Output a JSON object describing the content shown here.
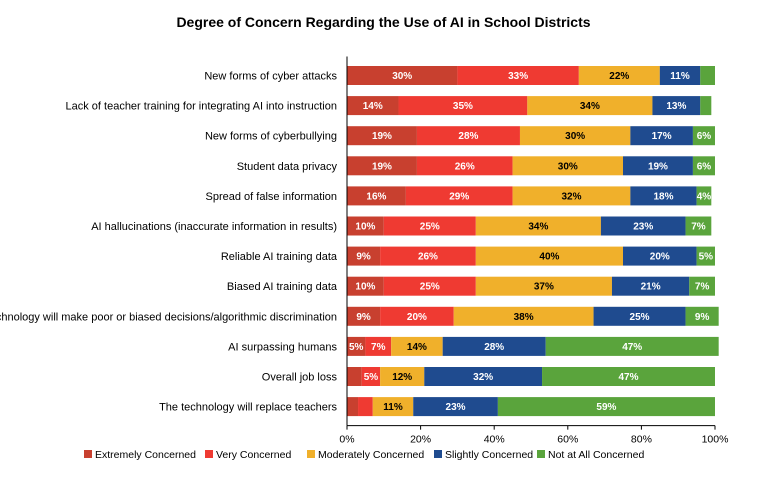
{
  "chart_data": {
    "type": "bar",
    "orientation": "horizontal",
    "stacked": true,
    "title": "Degree of Concern Regarding the Use of AI in School Districts",
    "xlabel": "",
    "ylabel": "",
    "xlim": [
      0,
      100
    ],
    "x_ticks": [
      "0%",
      "20%",
      "40%",
      "60%",
      "80%",
      "100%"
    ],
    "grid": false,
    "legend_position": "bottom",
    "categories": [
      "New forms of cyber attacks",
      "Lack of teacher training for integrating AI into instruction",
      "New forms of cyberbullying",
      "Student data privacy",
      "Spread of false information",
      "AI hallucinations (inaccurate information in results)",
      "Reliable AI training data",
      "Biased AI training data",
      "Technology will make poor or biased decisions/algorithmic discrimination",
      "AI surpassing humans",
      "Overall job loss",
      "The technology will replace teachers"
    ],
    "series": [
      {
        "name": "Extremely Concerned",
        "color": "#c8402f",
        "label_dark": false,
        "values": [
          30,
          14,
          19,
          19,
          16,
          10,
          9,
          10,
          9,
          5,
          4,
          3
        ],
        "labels": [
          "30%",
          "14%",
          "19%",
          "19%",
          "16%",
          "10%",
          "9%",
          "10%",
          "9%",
          "5%",
          "",
          ""
        ]
      },
      {
        "name": "Very Concerned",
        "color": "#ef3a32",
        "label_dark": false,
        "values": [
          33,
          35,
          28,
          26,
          29,
          25,
          26,
          25,
          20,
          7,
          5,
          4
        ],
        "labels": [
          "33%",
          "35%",
          "28%",
          "26%",
          "29%",
          "25%",
          "26%",
          "25%",
          "20%",
          "7%",
          "5%",
          ""
        ]
      },
      {
        "name": "Moderately Concerned",
        "color": "#f0b02b",
        "label_dark": true,
        "values": [
          22,
          34,
          30,
          30,
          32,
          34,
          40,
          37,
          38,
          14,
          12,
          11
        ],
        "labels": [
          "22%",
          "34%",
          "30%",
          "30%",
          "32%",
          "34%",
          "40%",
          "37%",
          "38%",
          "14%",
          "12%",
          "11%"
        ]
      },
      {
        "name": "Slightly Concerned",
        "color": "#1f4b8f",
        "label_dark": false,
        "values": [
          11,
          13,
          17,
          19,
          18,
          23,
          20,
          21,
          25,
          28,
          32,
          23
        ],
        "labels": [
          "11%",
          "13%",
          "17%",
          "19%",
          "18%",
          "23%",
          "20%",
          "21%",
          "25%",
          "28%",
          "32%",
          "23%"
        ]
      },
      {
        "name": "Not at All Concerned",
        "color": "#5aa43c",
        "label_dark": false,
        "values": [
          4,
          3,
          6,
          6,
          4,
          7,
          5,
          7,
          9,
          47,
          47,
          59
        ],
        "labels": [
          "",
          "",
          "6%",
          "6%",
          "4%",
          "7%",
          "5%",
          "7%",
          "9%",
          "47%",
          "47%",
          "59%"
        ]
      }
    ]
  }
}
